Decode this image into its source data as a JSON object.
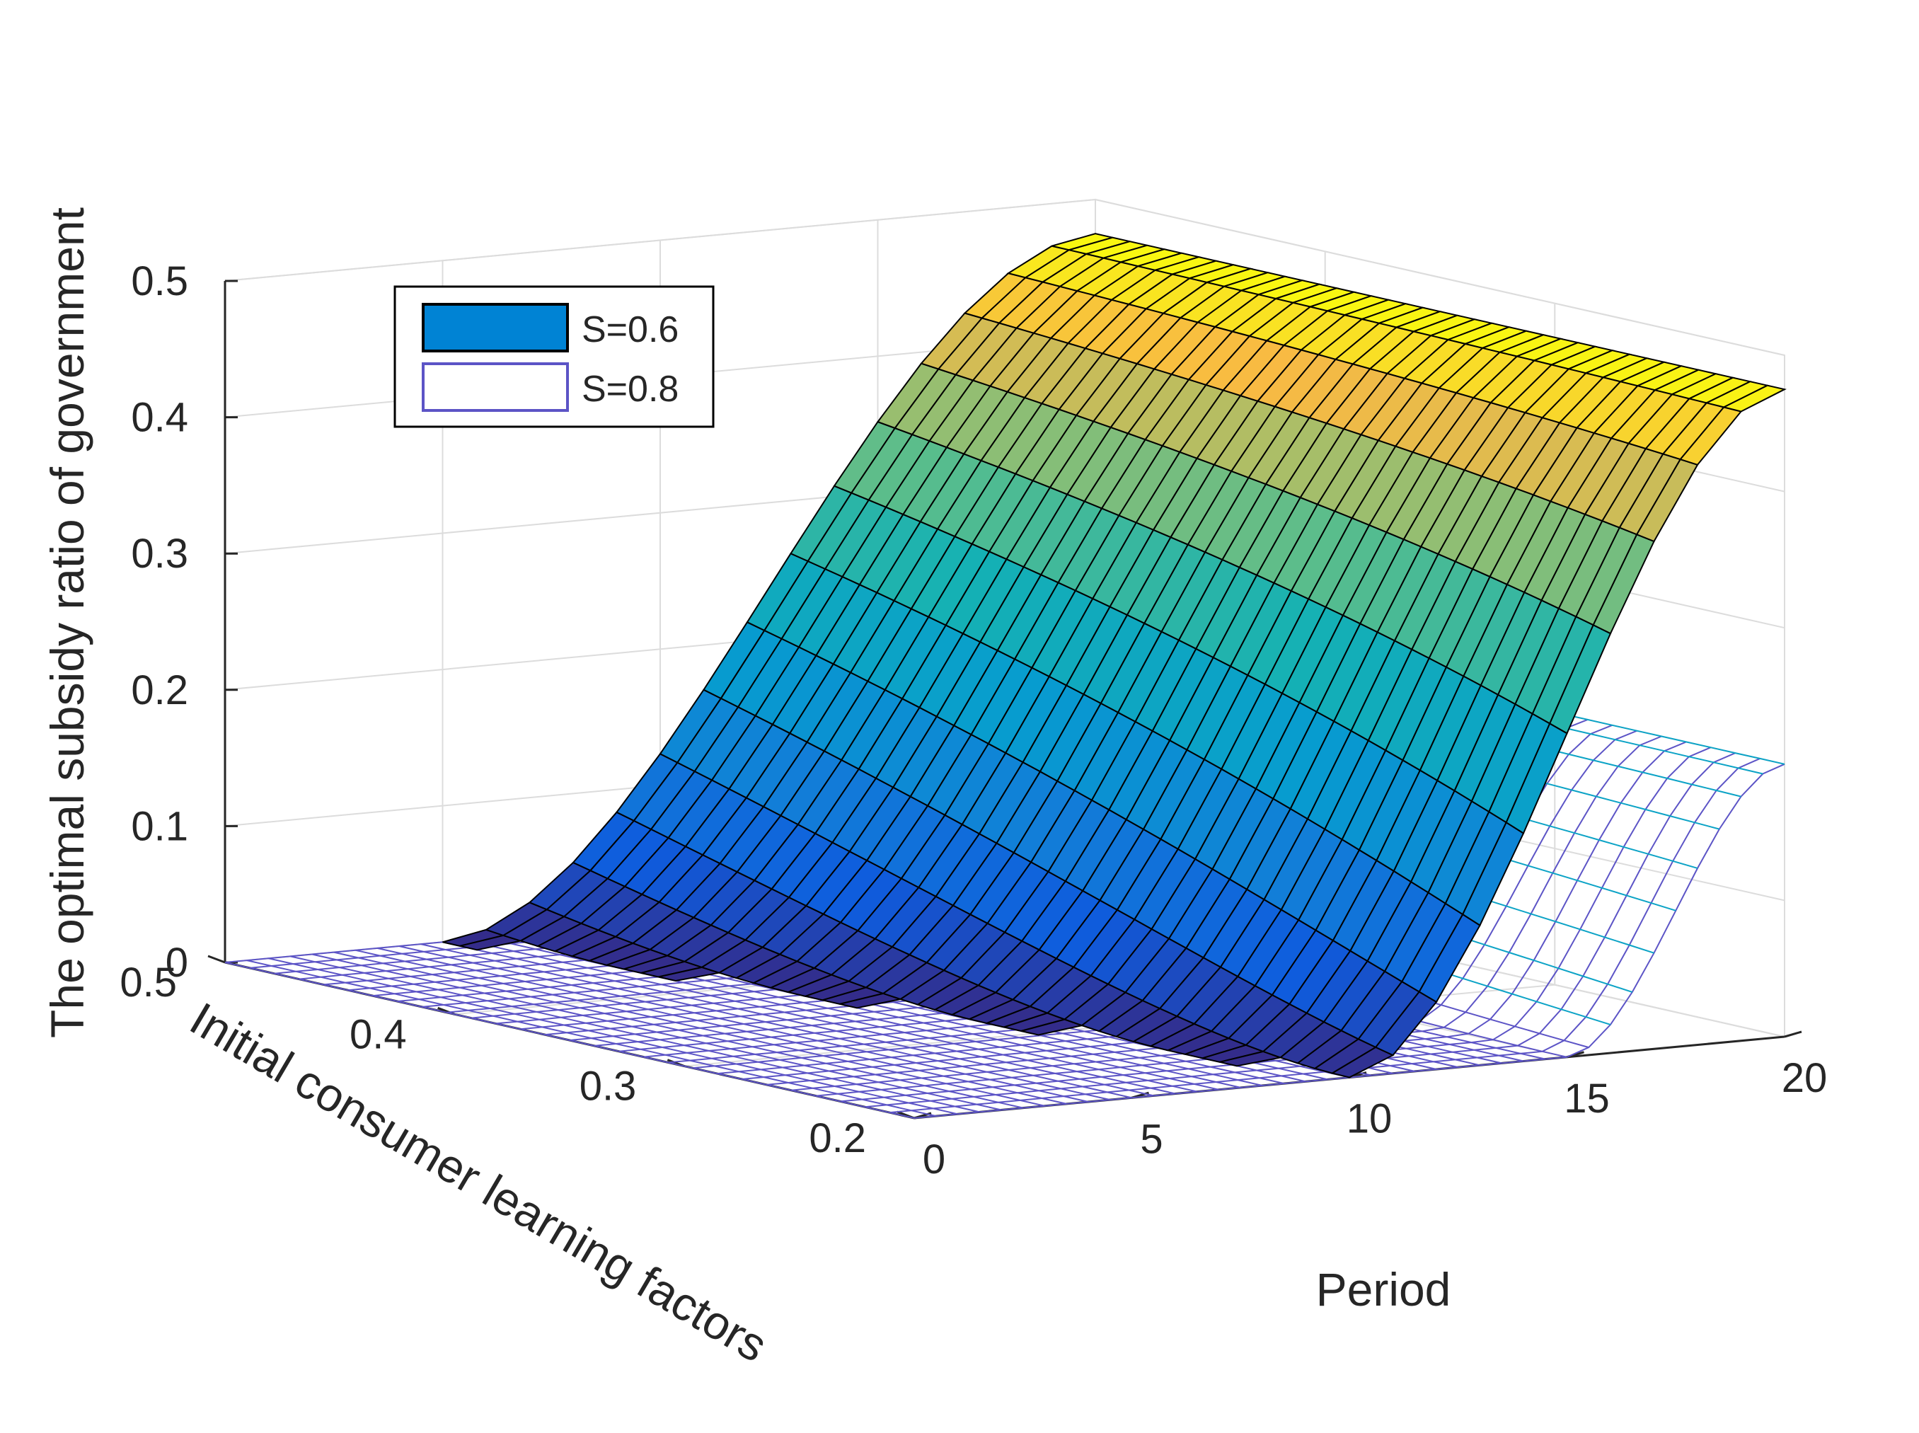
{
  "chart_data": {
    "type": "surface3d",
    "title": "",
    "xlabel": "Period",
    "ylabel": "Initial consumer learning factors",
    "zlabel": "The optimal subsidy ratio of government",
    "x_ticks": [
      "0",
      "5",
      "10",
      "15",
      "20"
    ],
    "y_ticks": [
      "0.2",
      "0.3",
      "0.4",
      "0.5"
    ],
    "z_ticks": [
      "0",
      "0.1",
      "0.2",
      "0.3",
      "0.4",
      "0.5"
    ],
    "xlim": [
      0,
      20
    ],
    "ylim": [
      0.2,
      0.5
    ],
    "zlim": [
      0,
      0.5
    ],
    "grid": true,
    "legend_position": "top-left",
    "colormap": "parula",
    "series": [
      {
        "name": "S=0.6",
        "style": "filled surface",
        "edge_color": "#000000",
        "legend_swatch_color": "#0083d4",
        "threshold_period_at_learning_0.2": 10,
        "threshold_period_at_learning_0.5": 5,
        "value_at_period_20_learning_0.2": 0.475,
        "value_at_period_20_learning_0.5": 0.475
      },
      {
        "name": "S=0.8",
        "style": "mesh",
        "edge_color": "#5c54c6",
        "legend_swatch_color": "#ffffff",
        "threshold_period_at_learning_0.2": 15,
        "threshold_period_at_learning_0.5": 13.6,
        "value_at_period_20_learning_0.2": 0.2,
        "value_at_period_20_learning_0.5": 0.2
      }
    ]
  }
}
